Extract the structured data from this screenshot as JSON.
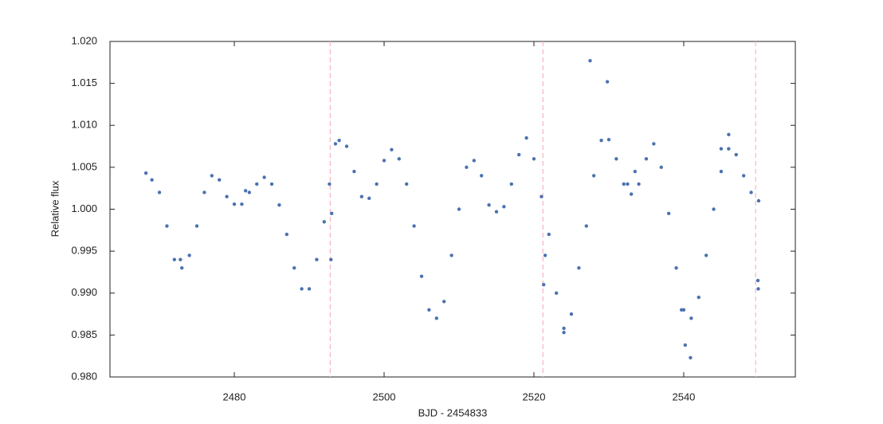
{
  "chart_data": {
    "type": "scatter",
    "xlabel": "BJD - 2454833",
    "ylabel": "Relative flux",
    "xlim": [
      2463.4,
      2554.9
    ],
    "ylim": [
      0.98,
      1.02
    ],
    "xticks": [
      2480,
      2500,
      2520,
      2540
    ],
    "yticks": [
      {
        "value": 0.98,
        "label": "0.980"
      },
      {
        "value": 0.985,
        "label": "0.985"
      },
      {
        "value": 0.99,
        "label": "0.990"
      },
      {
        "value": 0.995,
        "label": "0.995"
      },
      {
        "value": 1.0,
        "label": "1.000"
      },
      {
        "value": 1.005,
        "label": "1.005"
      },
      {
        "value": 1.01,
        "label": "1.010"
      },
      {
        "value": 1.015,
        "label": "1.015"
      },
      {
        "value": 1.02,
        "label": "1.020"
      }
    ],
    "vlines": [
      2492.8,
      2521.2,
      2549.6
    ],
    "vline_color": "#f4b6c2",
    "series": [
      {
        "color": "#4c72b0",
        "x": [
          2468.2,
          2469,
          2470,
          2471,
          2472,
          2473,
          2474,
          2475,
          2476,
          2477,
          2478,
          2479,
          2480,
          2481,
          2482,
          2483,
          2484,
          2485,
          2486,
          2487,
          2488,
          2489,
          2490,
          2491,
          2492,
          2492.7,
          2493.5,
          2494,
          2495,
          2496,
          2497,
          2498,
          2499,
          2500,
          2501,
          2502,
          2503,
          2504,
          2505,
          2506,
          2507,
          2508,
          2509,
          2510,
          2511,
          2512,
          2513,
          2514,
          2515,
          2516,
          2517,
          2518,
          2519,
          2520,
          2521,
          2522,
          2523,
          2524,
          2525,
          2526,
          2527,
          2528,
          2529,
          2530,
          2531,
          2532,
          2533,
          2534,
          2535,
          2536,
          2537,
          2538,
          2539,
          2540,
          2541,
          2542,
          2543,
          2544,
          2545,
          2546,
          2547,
          2548,
          2549,
          2550,
          2527.5,
          2529.8,
          2524,
          2540.2,
          2540.9,
          2539.7,
          2492.9,
          2493,
          2521.5,
          2521.3,
          2549.9,
          2549.95,
          2533.5,
          2546,
          2545,
          2532.5,
          2481.5,
          2472.8
        ],
        "y": [
          1.0043,
          1.0035,
          1.002,
          0.998,
          0.994,
          0.993,
          0.9945,
          0.998,
          1.002,
          1.004,
          1.0035,
          1.0015,
          1.0006,
          1.0006,
          1.002,
          1.003,
          1.0038,
          1.003,
          1.0005,
          0.997,
          0.993,
          0.9905,
          0.9905,
          0.994,
          0.9985,
          1.003,
          1.0078,
          1.0082,
          1.0075,
          1.0045,
          1.0015,
          1.0013,
          1.003,
          1.0058,
          1.0071,
          1.006,
          1.003,
          0.998,
          0.992,
          0.988,
          0.987,
          0.989,
          0.9945,
          1.0,
          1.005,
          1.0058,
          1.004,
          1.0005,
          0.9997,
          1.0003,
          1.003,
          1.0065,
          1.0085,
          1.006,
          1.0015,
          0.997,
          0.99,
          0.9858,
          0.9875,
          0.993,
          0.998,
          1.004,
          1.0082,
          1.0083,
          1.006,
          1.003,
          1.0018,
          1.003,
          1.006,
          1.0078,
          1.005,
          0.9995,
          0.993,
          0.988,
          0.987,
          0.9895,
          0.9945,
          1.0,
          1.0045,
          1.0072,
          1.0065,
          1.004,
          1.002,
          1.001,
          1.0177,
          1.0152,
          0.9853,
          0.9838,
          0.9823,
          0.988,
          0.994,
          0.9995,
          0.9945,
          0.991,
          0.9915,
          0.9905,
          1.0045,
          1.0089,
          1.0072,
          1.003,
          1.0022,
          0.994
        ]
      }
    ]
  }
}
